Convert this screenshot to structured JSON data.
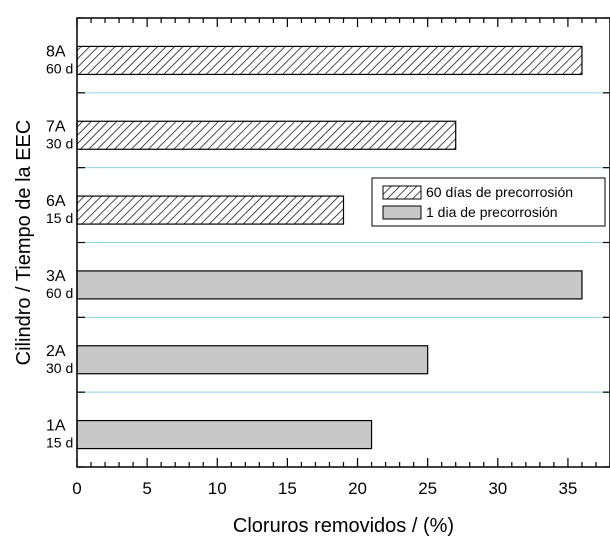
{
  "chart_data": {
    "type": "bar",
    "orientation": "horizontal",
    "xlabel": "Cloruros removidos / (%)",
    "ylabel": "Cilindro / Tiempo de la EEC",
    "xlim": [
      0,
      38
    ],
    "xticks": [
      "0",
      "5",
      "10",
      "15",
      "20",
      "25",
      "30",
      "35"
    ],
    "grid": "horizontal, light blue",
    "legend_position": "right-middle",
    "colors": {
      "hatched": "#000000",
      "gray": "#c8c8c8",
      "grid": "#8fd3e0"
    },
    "categories": [
      {
        "name": "8A",
        "time": "60 d",
        "series": 0,
        "value": 36
      },
      {
        "name": "7A",
        "time": "30 d",
        "series": 0,
        "value": 27
      },
      {
        "name": "6A",
        "time": "15 d",
        "series": 0,
        "value": 19
      },
      {
        "name": "3A",
        "time": "60 d",
        "series": 1,
        "value": 36
      },
      {
        "name": "2A",
        "time": "30 d",
        "series": 1,
        "value": 25
      },
      {
        "name": "1A",
        "time": "15 d",
        "series": 1,
        "value": 21
      }
    ],
    "series": [
      {
        "name": "60 días de precorrosión",
        "style": "hatched"
      },
      {
        "name": "1 dia de precorrosión",
        "style": "gray"
      }
    ]
  }
}
